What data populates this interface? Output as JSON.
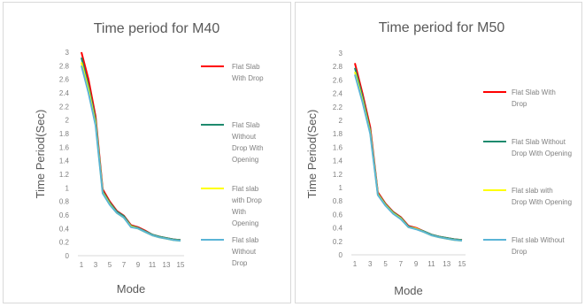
{
  "chart_data": [
    {
      "type": "line",
      "title": "Time period for M40",
      "xlabel": "Mode",
      "ylabel": "Time Period(Sec)",
      "x": [
        1,
        2,
        3,
        4,
        5,
        6,
        7,
        8,
        9,
        10,
        11,
        12,
        13,
        14,
        15
      ],
      "x_ticks": [
        "1",
        "3",
        "5",
        "7",
        "9",
        "11",
        "13",
        "15"
      ],
      "y_ticks": [
        "0",
        "0.2",
        "0.4",
        "0.6",
        "0.8",
        "1",
        "1.2",
        "1.4",
        "1.6",
        "1.8",
        "2",
        "2.2",
        "2.4",
        "2.6",
        "2.8",
        "3"
      ],
      "ylim": [
        0,
        3
      ],
      "grid": false,
      "legend": "right",
      "series": [
        {
          "name": "Flat Slab With Drop",
          "color": "#ff0000",
          "values": [
            3.0,
            2.6,
            2.05,
            0.98,
            0.8,
            0.66,
            0.59,
            0.45,
            0.42,
            0.37,
            0.31,
            0.28,
            0.26,
            0.24,
            0.23
          ]
        },
        {
          "name": "Flat Slab Without Drop With Opening",
          "color": "#1e8a6e",
          "values": [
            2.92,
            2.5,
            2.0,
            0.95,
            0.78,
            0.65,
            0.58,
            0.44,
            0.41,
            0.36,
            0.31,
            0.28,
            0.26,
            0.24,
            0.23
          ]
        },
        {
          "name": "Flat slab with Drop With Opening",
          "color": "#ffff00",
          "values": [
            2.85,
            2.45,
            1.95,
            0.93,
            0.76,
            0.63,
            0.56,
            0.43,
            0.4,
            0.35,
            0.3,
            0.27,
            0.25,
            0.23,
            0.22
          ]
        },
        {
          "name": "Flat slab Without Drop",
          "color": "#5ab4d6",
          "values": [
            2.8,
            2.4,
            1.92,
            0.92,
            0.75,
            0.63,
            0.56,
            0.42,
            0.4,
            0.35,
            0.3,
            0.27,
            0.25,
            0.23,
            0.22
          ]
        }
      ]
    },
    {
      "type": "line",
      "title": "Time period for M50",
      "xlabel": "Mode",
      "ylabel": "Time Period(Sec)",
      "x": [
        1,
        2,
        3,
        4,
        5,
        6,
        7,
        8,
        9,
        10,
        11,
        12,
        13,
        14,
        15
      ],
      "x_ticks": [
        "1",
        "3",
        "5",
        "7",
        "9",
        "11",
        "13",
        "15"
      ],
      "y_ticks": [
        "0",
        "0.2",
        "0.4",
        "0.6",
        "0.8",
        "1",
        "1.2",
        "1.4",
        "1.6",
        "1.8",
        "2",
        "2.2",
        "2.4",
        "2.6",
        "2.8",
        "3"
      ],
      "ylim": [
        0,
        3
      ],
      "grid": false,
      "legend": "right",
      "series": [
        {
          "name": "Flat Slab With Drop",
          "color": "#ff0000",
          "values": [
            2.85,
            2.4,
            1.9,
            0.93,
            0.76,
            0.64,
            0.56,
            0.43,
            0.4,
            0.35,
            0.3,
            0.27,
            0.25,
            0.23,
            0.22
          ]
        },
        {
          "name": "Flat Slab Without Drop With Opening",
          "color": "#1e8a6e",
          "values": [
            2.78,
            2.35,
            1.85,
            0.91,
            0.75,
            0.63,
            0.55,
            0.42,
            0.39,
            0.35,
            0.3,
            0.27,
            0.25,
            0.23,
            0.22
          ]
        },
        {
          "name": "Flat slab with Drop With Opening",
          "color": "#ffff00",
          "values": [
            2.72,
            2.3,
            1.82,
            0.9,
            0.74,
            0.62,
            0.54,
            0.41,
            0.39,
            0.34,
            0.29,
            0.26,
            0.24,
            0.22,
            0.21
          ]
        },
        {
          "name": "Flat slab Without Drop",
          "color": "#5ab4d6",
          "values": [
            2.68,
            2.27,
            1.8,
            0.89,
            0.73,
            0.61,
            0.53,
            0.41,
            0.38,
            0.34,
            0.29,
            0.26,
            0.24,
            0.22,
            0.21
          ]
        }
      ]
    }
  ]
}
